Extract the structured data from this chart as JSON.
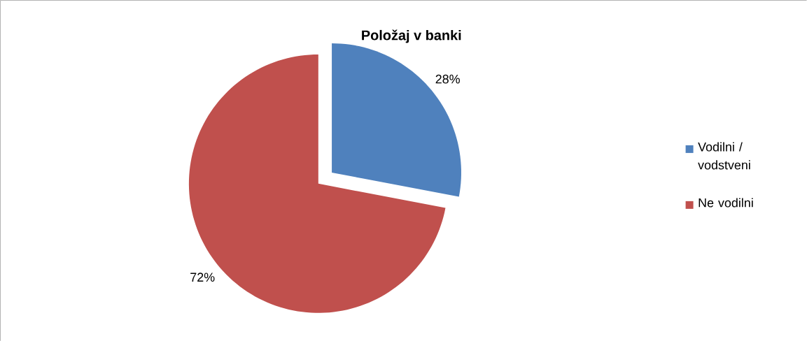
{
  "chart_data": {
    "type": "pie",
    "title": "Položaj v banki",
    "categories": [
      "Vodilni / vodstveni",
      "Ne vodilni"
    ],
    "values": [
      28,
      72
    ],
    "colors": [
      "#4f81bd",
      "#c0504d"
    ],
    "value_labels": [
      "28%",
      "72%"
    ],
    "legend": "right"
  }
}
